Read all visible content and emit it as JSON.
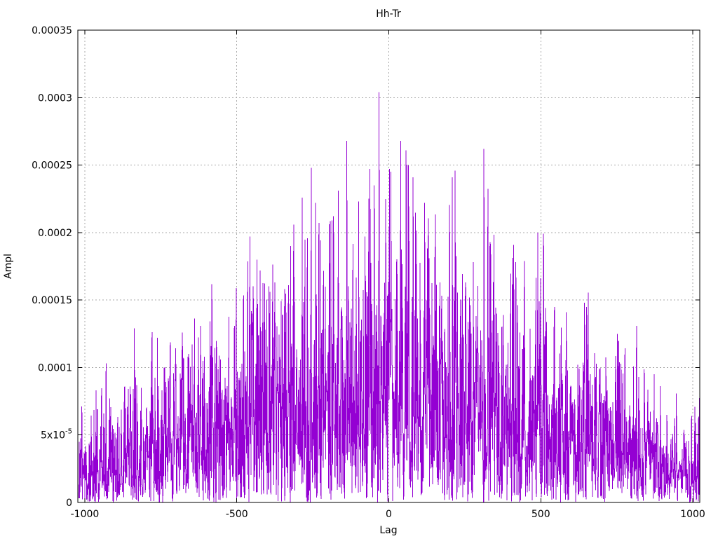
{
  "chart_data": {
    "type": "line",
    "title": "Hh-Tr",
    "xlabel": "Lag",
    "ylabel": "Ampl",
    "xlim": [
      -1023,
      1023
    ],
    "ylim": [
      0,
      0.00035
    ],
    "grid": true,
    "legend": "none",
    "line_color": "#9400d3",
    "grid_color": "#a8a8a8",
    "frame_color": "#000000",
    "background_color": "#ffffff",
    "x_ticks": [
      {
        "v": -1000,
        "label": "-1000"
      },
      {
        "v": -500,
        "label": "-500"
      },
      {
        "v": 0,
        "label": "0"
      },
      {
        "v": 500,
        "label": "500"
      },
      {
        "v": 1000,
        "label": "1000"
      }
    ],
    "y_ticks": [
      {
        "v": 0,
        "label": "0"
      },
      {
        "v": 5e-05,
        "label": "5x10",
        "exponent": "-5"
      },
      {
        "v": 0.0001,
        "label": "0.0001"
      },
      {
        "v": 0.00015,
        "label": "0.00015"
      },
      {
        "v": 0.0002,
        "label": "0.0002"
      },
      {
        "v": 0.00025,
        "label": "0.00025"
      },
      {
        "v": 0.0003,
        "label": "0.0003"
      },
      {
        "v": 0.00035,
        "label": "0.00035"
      }
    ],
    "series": {
      "name": "Hh-Tr",
      "style": "lines",
      "points_count": 2047,
      "x_start": -1023,
      "x_step": 1,
      "description": "Dense noise-like amplitude vs lag; amplitude = envelope(lag) * |noise|, bell-shaped envelope peaking at lag 0",
      "envelope": {
        "base": 1.5e-05,
        "peak": 0.00016,
        "sigma": 615
      },
      "noise_seed": 1337,
      "noise_scale": 0.95,
      "random_cap": 0.00026
    },
    "notable_peaks": [
      {
        "x": -930,
        "y": 0.000103
      },
      {
        "x": -851,
        "y": 8.6e-05
      },
      {
        "x": -761,
        "y": 0.000122
      },
      {
        "x": -720,
        "y": 9e-05
      },
      {
        "x": -611,
        "y": 0.000105
      },
      {
        "x": -580,
        "y": 0.000103
      },
      {
        "x": -502,
        "y": 0.000159
      },
      {
        "x": -474,
        "y": 0.000112
      },
      {
        "x": -434,
        "y": 0.00018
      },
      {
        "x": -375,
        "y": 0.000163
      },
      {
        "x": -343,
        "y": 0.000158
      },
      {
        "x": -329,
        "y": 0.000142
      },
      {
        "x": -313,
        "y": 0.000206
      },
      {
        "x": -285,
        "y": 0.000226
      },
      {
        "x": -241,
        "y": 0.000222
      },
      {
        "x": -182,
        "y": 0.000212
      },
      {
        "x": -166,
        "y": 0.000231
      },
      {
        "x": -138,
        "y": 0.000268
      },
      {
        "x": -99,
        "y": 0.000223
      },
      {
        "x": -78,
        "y": 0.000197
      },
      {
        "x": -48,
        "y": 0.000235
      },
      {
        "x": -32,
        "y": 0.000304
      },
      {
        "x": 7,
        "y": 0.000245
      },
      {
        "x": 39,
        "y": 0.000268
      },
      {
        "x": 57,
        "y": 0.000261
      },
      {
        "x": 80,
        "y": 0.000241
      },
      {
        "x": 133,
        "y": 0.000181
      },
      {
        "x": 168,
        "y": 0.000163
      },
      {
        "x": 209,
        "y": 0.000241
      },
      {
        "x": 218,
        "y": 0.000246
      },
      {
        "x": 253,
        "y": 0.000163
      },
      {
        "x": 313,
        "y": 0.000262
      },
      {
        "x": 333,
        "y": 0.000193
      },
      {
        "x": 377,
        "y": 0.000139
      },
      {
        "x": 418,
        "y": 0.000178
      },
      {
        "x": 446,
        "y": 0.000179
      },
      {
        "x": 490,
        "y": 0.0002
      },
      {
        "x": 510,
        "y": 0.000155
      },
      {
        "x": 545,
        "y": 0.000145
      },
      {
        "x": 644,
        "y": 0.000148
      },
      {
        "x": 752,
        "y": 0.000125
      }
    ]
  }
}
